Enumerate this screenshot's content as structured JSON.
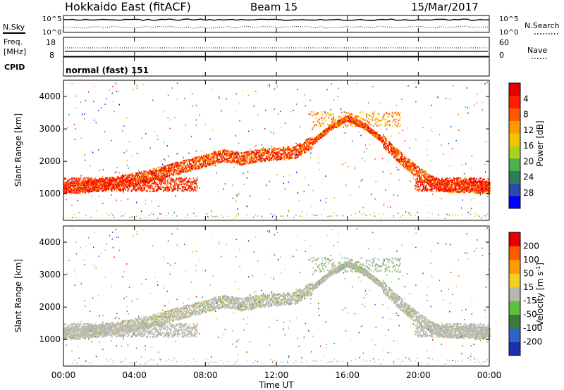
{
  "chart_data": {
    "type": "heatmap",
    "header": {
      "station": "Hokkaido East (fitACF)",
      "beam": "Beam 15",
      "date": "15/Mar/2017"
    },
    "top_panels": {
      "nsky_label": "N.Sky",
      "nsearch_label": "N.Search",
      "noise_ticks": [
        "10^5",
        "10^0"
      ],
      "freq_label_line1": "Freq.",
      "freq_label_line2": "[MHz]",
      "freq_ticks": [
        "18",
        "8"
      ],
      "nave_label": "Nave",
      "nave_ticks": [
        "60",
        "0"
      ],
      "cpid_label": "CPID",
      "cpid_value": "normal (fast) 151"
    },
    "x_axis": {
      "label": "Time UT",
      "ticks": [
        "00:00",
        "04:00",
        "08:00",
        "12:00",
        "16:00",
        "20:00",
        "00:00"
      ],
      "range_hours": [
        0,
        24
      ]
    },
    "y_axis": {
      "label": "Slant Range [km]",
      "ticks": [
        1000,
        2000,
        3000,
        4000
      ],
      "range_km": [
        180,
        4500
      ]
    },
    "power_panel": {
      "colorbar_label": "Power [dB]",
      "colorbar_ticks": [
        "4",
        "8",
        "12",
        "16",
        "20",
        "24",
        "28"
      ],
      "colorbar_range": [
        0,
        30
      ],
      "colors": [
        "#0000ff",
        "#2a4aa8",
        "#2e7d5a",
        "#4caf50",
        "#a8d420",
        "#f5c400",
        "#ff9a00",
        "#ff5a00",
        "#ff1e00",
        "#e80000"
      ]
    },
    "velocity_panel": {
      "colorbar_label": "Velocity [m s^-1]",
      "colorbar_ticks": [
        "200",
        "100",
        "50",
        "15",
        "-15",
        "-50",
        "-100",
        "-200"
      ],
      "colors": [
        "#1f2fb0",
        "#2f64c8",
        "#3a7a3a",
        "#5fbf3f",
        "#b8b8b0",
        "#f3d020",
        "#ff9a00",
        "#ff5a00",
        "#e80000"
      ]
    },
    "main_band": [
      {
        "t": 0.0,
        "km": 1150
      },
      {
        "t": 1.0,
        "km": 1180
      },
      {
        "t": 2.0,
        "km": 1250
      },
      {
        "t": 3.0,
        "km": 1320
      },
      {
        "t": 4.0,
        "km": 1420
      },
      {
        "t": 5.0,
        "km": 1550
      },
      {
        "t": 6.0,
        "km": 1700
      },
      {
        "t": 7.0,
        "km": 1850
      },
      {
        "t": 8.0,
        "km": 2000
      },
      {
        "t": 9.0,
        "km": 2150
      },
      {
        "t": 10.0,
        "km": 2050
      },
      {
        "t": 11.0,
        "km": 2150
      },
      {
        "t": 12.0,
        "km": 2200
      },
      {
        "t": 13.0,
        "km": 2250
      },
      {
        "t": 14.0,
        "km": 2550
      },
      {
        "t": 15.0,
        "km": 3000
      },
      {
        "t": 16.0,
        "km": 3300
      },
      {
        "t": 17.0,
        "km": 3050
      },
      {
        "t": 18.0,
        "km": 2600
      },
      {
        "t": 19.0,
        "km": 2050
      },
      {
        "t": 20.0,
        "km": 1600
      },
      {
        "t": 21.0,
        "km": 1250
      },
      {
        "t": 22.0,
        "km": 1200
      },
      {
        "t": 23.0,
        "km": 1200
      },
      {
        "t": 24.0,
        "km": 1150
      }
    ]
  }
}
